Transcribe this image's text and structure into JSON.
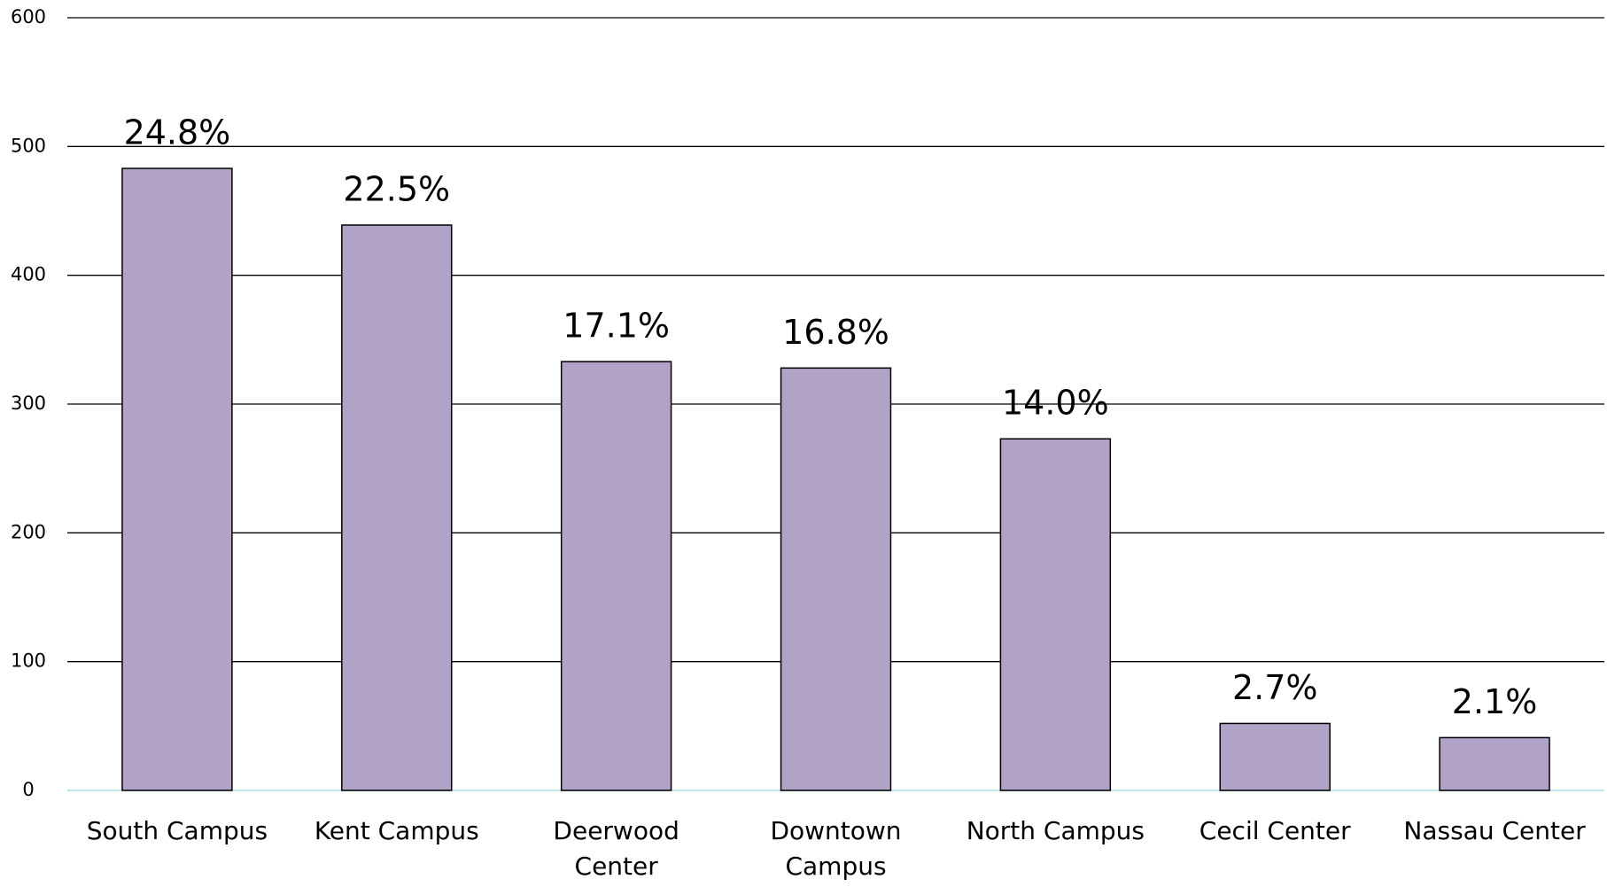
{
  "chart_data": {
    "type": "bar",
    "categories": [
      "South Campus",
      "Kent Campus",
      "Deerwood Center",
      "Downtown Campus",
      "North Campus",
      "Cecil Center",
      "Nassau Center"
    ],
    "values": [
      483,
      439,
      333,
      328,
      273,
      52,
      41
    ],
    "data_labels": [
      "24.8%",
      "22.5%",
      "17.1%",
      "16.8%",
      "14.0%",
      "2.7%",
      "2.1%"
    ],
    "color": "#b1a3c8",
    "ylim": [
      0,
      600
    ],
    "yticks": [
      0,
      100,
      200,
      300,
      400,
      500,
      600
    ],
    "grid": true
  }
}
